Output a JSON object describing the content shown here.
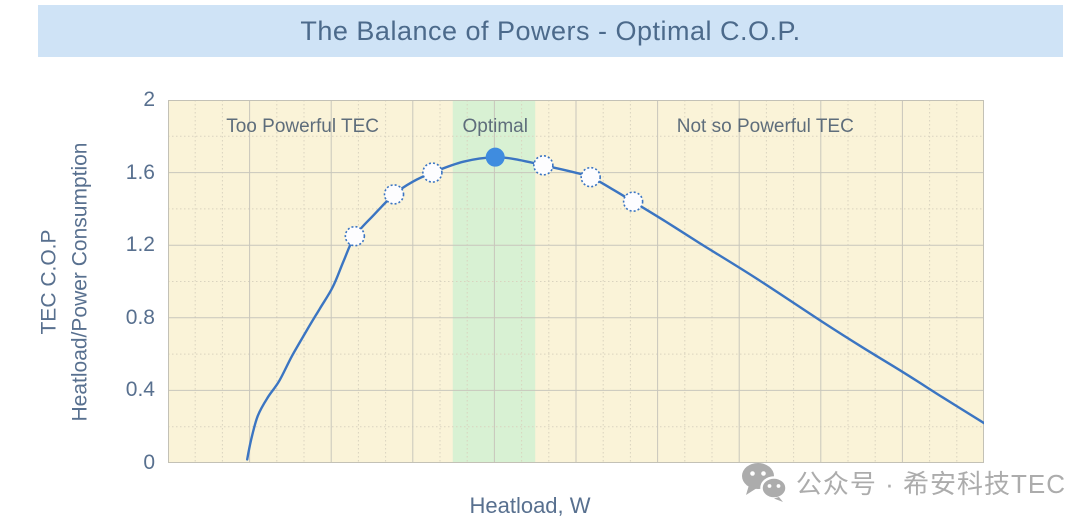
{
  "header": {
    "title": "The Balance of Powers - Optimal C.O.P."
  },
  "watermark": {
    "icon": "wechat-icon",
    "text": "公众号 · 希安科技TEC"
  },
  "chart_data": {
    "type": "line",
    "title": "The Balance of Powers - Optimal C.O.P.",
    "xlabel": "Heatload, W",
    "ylabel_line1": "TEC C.O.P",
    "ylabel_line2": "Heatload/Power Consumption",
    "xlim": [
      0,
      100
    ],
    "ylim": [
      0,
      2
    ],
    "y_ticks": [
      0,
      0.4,
      0.8,
      1.2,
      1.6,
      2
    ],
    "y_tick_labels": [
      "0",
      "0.4",
      "0.8",
      "1.2",
      "1.6",
      "2"
    ],
    "y_minor_ticks": [
      0.2,
      0.6,
      1.0,
      1.4,
      1.8
    ],
    "x_major_step": 10,
    "x_minor_per_major": 3,
    "grid": true,
    "optimal_band": {
      "x0": 34.9,
      "x1": 45.0,
      "label": "Optimal"
    },
    "annotations": [
      {
        "text": "Too Powerful TEC",
        "x": 16.5,
        "y": 1.85
      },
      {
        "text": "Optimal",
        "x": 40.1,
        "y": 1.85
      },
      {
        "text": "Not so Powerful TEC",
        "x": 73.2,
        "y": 1.85
      }
    ],
    "curve": [
      [
        9.7,
        0.02
      ],
      [
        10.2,
        0.13
      ],
      [
        11.0,
        0.26
      ],
      [
        12.2,
        0.36
      ],
      [
        13.6,
        0.45
      ],
      [
        15.2,
        0.59
      ],
      [
        17.0,
        0.73
      ],
      [
        18.6,
        0.85
      ],
      [
        20.2,
        0.97
      ],
      [
        21.5,
        1.11
      ],
      [
        22.9,
        1.25
      ],
      [
        25.3,
        1.37
      ],
      [
        27.7,
        1.48
      ],
      [
        30.0,
        1.55
      ],
      [
        32.4,
        1.6
      ],
      [
        36.2,
        1.66
      ],
      [
        40.1,
        1.685
      ],
      [
        43.0,
        1.67
      ],
      [
        46.0,
        1.64
      ],
      [
        49.0,
        1.61
      ],
      [
        51.8,
        1.575
      ],
      [
        54.4,
        1.51
      ],
      [
        57.0,
        1.44
      ],
      [
        61.0,
        1.33
      ],
      [
        65.2,
        1.21
      ],
      [
        72.0,
        1.02
      ],
      [
        80.1,
        0.78
      ],
      [
        85.0,
        0.64
      ],
      [
        90.1,
        0.5
      ],
      [
        95.0,
        0.36
      ],
      [
        100,
        0.22
      ]
    ],
    "markers": [
      {
        "x": 22.9,
        "y": 1.25,
        "style": "hollow"
      },
      {
        "x": 27.7,
        "y": 1.48,
        "style": "hollow"
      },
      {
        "x": 32.4,
        "y": 1.6,
        "style": "hollow"
      },
      {
        "x": 40.1,
        "y": 1.685,
        "style": "filled"
      },
      {
        "x": 46.0,
        "y": 1.64,
        "style": "hollow"
      },
      {
        "x": 51.8,
        "y": 1.575,
        "style": "hollow"
      },
      {
        "x": 57.0,
        "y": 1.44,
        "style": "hollow"
      }
    ],
    "colors": {
      "title_bar_bg": "#cfe3f6",
      "title_text": "#4c6a8b",
      "plot_bg": "#faf3d8",
      "plot_border": "#c3c1b6",
      "optimal_band": "#d8f1d3",
      "grid_major": "#c8c6bc",
      "grid_minor": "#d9d3bf",
      "curve": "#3b75c2",
      "marker_filled": "#3f8cdf",
      "marker_hollow_fill": "#fdfdff",
      "axis_text": "#58708f",
      "annotation_text": "#5e6d7b",
      "watermark": "#acacac"
    }
  }
}
